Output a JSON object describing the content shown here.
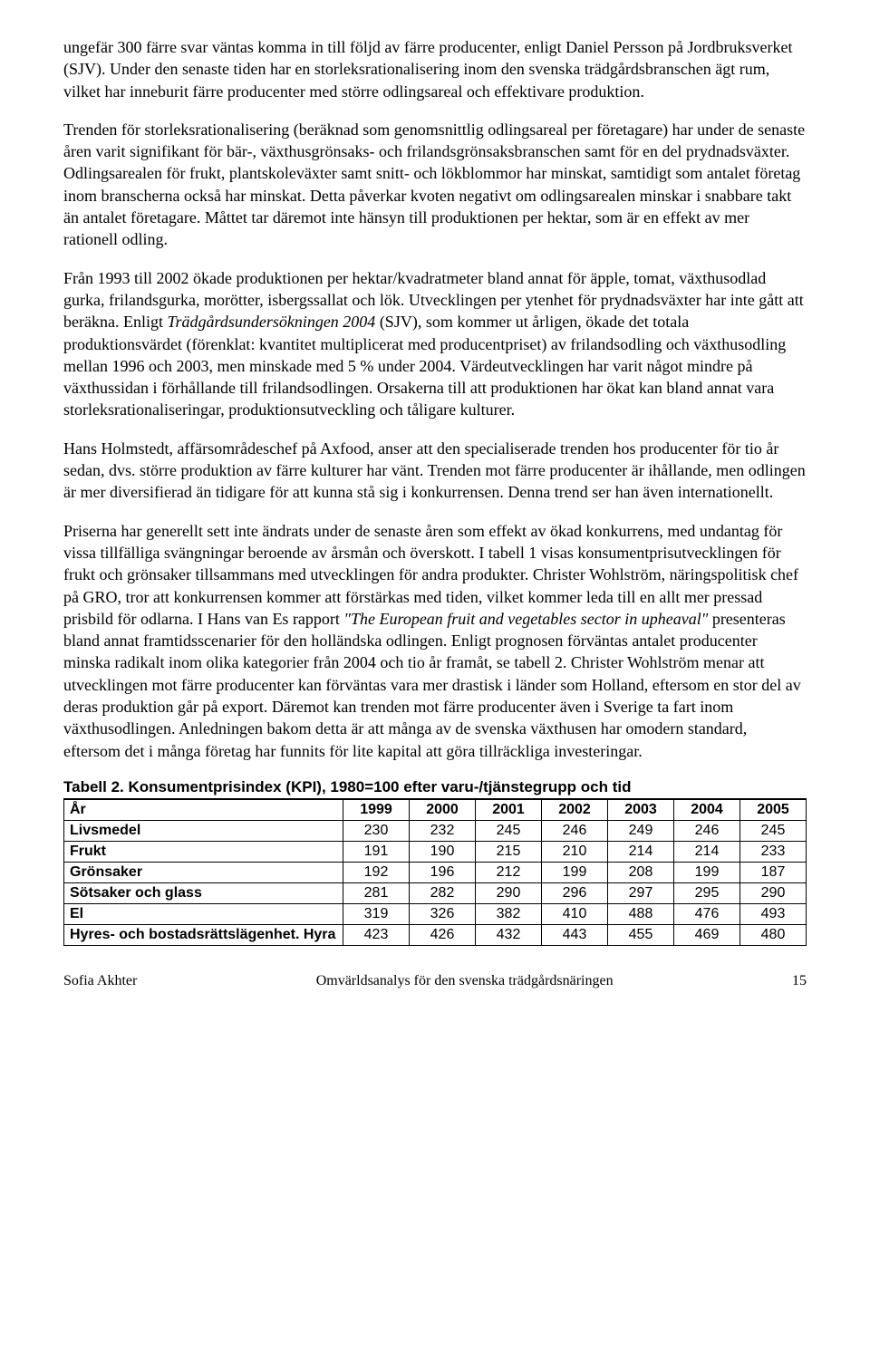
{
  "paragraphs": {
    "p1": "ungefär 300 färre svar väntas komma in till följd av färre producenter, enligt Daniel Persson på Jordbruksverket (SJV). Under den senaste tiden har en storleksrationalisering inom den svenska trädgårdsbranschen ägt rum, vilket har inneburit färre producenter med större odlingsareal och effektivare produktion.",
    "p2": "Trenden för storleksrationalisering (beräknad som genomsnittlig odlingsareal per företagare) har under de senaste åren varit signifikant för bär-, växthusgrönsaks- och frilandsgrönsaksbranschen samt för en del prydnadsväxter. Odlingsarealen för frukt, plantskoleväxter samt snitt- och lökblommor har minskat, samtidigt som antalet företag inom branscherna också har minskat. Detta påverkar kvoten negativt om odlingsarealen minskar i snabbare takt än antalet företagare. Måttet tar däremot inte hänsyn till produktionen per hektar, som är en effekt av mer rationell odling.",
    "p3a": "Från 1993 till 2002 ökade produktionen per hektar/kvadratmeter bland annat för äpple, tomat, växthusodlad gurka, frilandsgurka, morötter, isbergssallat och lök. Utvecklingen per ytenhet för prydnadsväxter har inte gått att beräkna. Enligt ",
    "p3b": "Trädgårdsundersökningen 2004",
    "p3c": " (SJV), som kommer ut årligen, ökade det totala produktionsvärdet (förenklat: kvantitet multiplicerat med producentpriset) av frilandsodling och växthusodling mellan 1996 och 2003, men minskade med 5 % under 2004. Värdeutvecklingen har varit något mindre på växthussidan i förhållande till frilandsodlingen. Orsakerna till att produktionen har ökat kan bland annat vara storleksrationaliseringar, produktionsutveckling och tåligare kulturer.",
    "p4": "Hans Holmstedt, affärsområdeschef på Axfood, anser att den specialiserade trenden hos producenter för tio år sedan, dvs. större produktion av färre kulturer har vänt. Trenden mot färre producenter är ihållande, men odlingen är mer diversifierad än tidigare för att kunna stå sig i konkurrensen. Denna trend ser han även internationellt.",
    "p5a": "Priserna har generellt sett inte ändrats under de senaste åren som effekt av ökad konkurrens, med undantag för vissa tillfälliga svängningar beroende av årsmån och överskott. I tabell 1 visas konsumentprisutvecklingen för frukt och grönsaker tillsammans med utvecklingen för andra produkter. Christer Wohlström, näringspolitisk chef på GRO, tror att konkurrensen kommer att förstärkas med tiden, vilket kommer leda till en allt mer pressad prisbild för odlarna. I Hans van Es rapport ",
    "p5b": "\"The European fruit and vegetables sector in upheaval\"",
    "p5c": " presenteras bland annat framtidsscenarier för den holländska odlingen. Enligt prognosen förväntas antalet producenter minska radikalt inom olika kategorier från 2004 och tio år framåt, se tabell 2. Christer Wohlström menar att utvecklingen mot färre producenter kan förväntas vara mer drastisk i länder som Holland, eftersom en stor del av deras produktion går på export. Däremot kan trenden mot färre producenter även i Sverige ta fart inom växthusodlingen. Anledningen bakom detta är att många av de svenska växthusen har omodern standard, eftersom det i många företag har funnits för lite kapital att göra tillräckliga investeringar."
  },
  "table": {
    "caption": "Tabell 2. Konsumentprisindex (KPI), 1980=100 efter varu-/tjänstegrupp och tid",
    "headers": [
      "År",
      "1999",
      "2000",
      "2001",
      "2002",
      "2003",
      "2004",
      "2005"
    ],
    "rows": [
      {
        "label": "Livsmedel",
        "values": [
          "230",
          "232",
          "245",
          "246",
          "249",
          "246",
          "245"
        ]
      },
      {
        "label": "Frukt",
        "values": [
          "191",
          "190",
          "215",
          "210",
          "214",
          "214",
          "233"
        ]
      },
      {
        "label": "Grönsaker",
        "values": [
          "192",
          "196",
          "212",
          "199",
          "208",
          "199",
          "187"
        ]
      },
      {
        "label": "Sötsaker och glass",
        "values": [
          "281",
          "282",
          "290",
          "296",
          "297",
          "295",
          "290"
        ]
      },
      {
        "label": "El",
        "values": [
          "319",
          "326",
          "382",
          "410",
          "488",
          "476",
          "493"
        ]
      },
      {
        "label": "Hyres- och bostadsrättslägenhet. Hyra",
        "values": [
          "423",
          "426",
          "432",
          "443",
          "455",
          "469",
          "480"
        ]
      }
    ]
  },
  "footer": {
    "author": "Sofia Akhter",
    "title": "Omvärldsanalys för den svenska trädgårdsnäringen",
    "page": "15"
  }
}
